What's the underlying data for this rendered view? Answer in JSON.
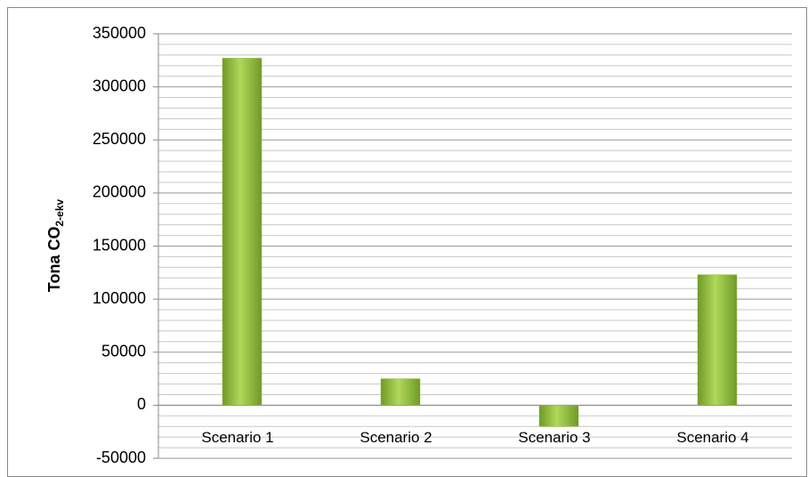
{
  "chart_data": {
    "type": "bar",
    "ylabel": "Tona CO",
    "ylabel_sub": "2-ekv",
    "categories": [
      "Scenario 1",
      "Scenario 2",
      "Scenario 3",
      "Scenario 4"
    ],
    "values": [
      327000,
      25000,
      -20000,
      123000
    ],
    "color": "#8dbb3a",
    "ylim": [
      -50000,
      350000
    ],
    "yticks": [
      -50000,
      0,
      50000,
      100000,
      150000,
      200000,
      250000,
      300000,
      350000
    ],
    "yminorticks": [
      -40000,
      -30000,
      -20000,
      -10000,
      10000,
      20000,
      30000,
      40000,
      60000,
      70000,
      80000,
      90000,
      110000,
      120000,
      130000,
      140000,
      160000,
      170000,
      180000,
      190000,
      210000,
      220000,
      230000,
      240000,
      260000,
      270000,
      280000,
      290000,
      310000,
      320000,
      330000,
      340000
    ],
    "grid": true
  }
}
